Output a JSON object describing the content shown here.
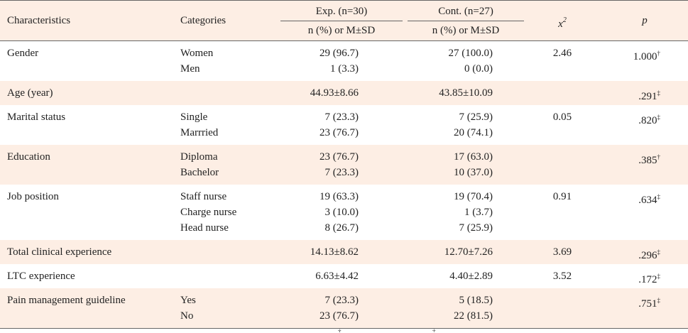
{
  "header": {
    "characteristics": "Characteristics",
    "categories": "Categories",
    "exp_group": "Exp. (n=30)",
    "cont_group": "Cont. (n=27)",
    "exp_sub": "n (%) or M±SD",
    "cont_sub": "n (%) or M±SD",
    "chi_base": "x",
    "chi_exp": "2",
    "p": "p"
  },
  "rows": [
    {
      "char": "Gender",
      "cats": [
        "Women",
        "Men"
      ],
      "exp": [
        "29 (96.7)",
        "1 (3.3)"
      ],
      "cont": [
        "27 (100.0)",
        "0 (0.0)"
      ],
      "chi": "2.46",
      "p": "1.000",
      "mark": "†",
      "shade": false
    },
    {
      "char": "Age (year)",
      "cats": [
        ""
      ],
      "exp": [
        "44.93±8.66"
      ],
      "cont": [
        "43.85±10.09"
      ],
      "chi": "",
      "p": ".291",
      "mark": "‡",
      "shade": true
    },
    {
      "char": "Marital status",
      "cats": [
        "Single",
        "Marrried"
      ],
      "exp": [
        "7 (23.3)",
        "23 (76.7)"
      ],
      "cont": [
        "7 (25.9)",
        "20 (74.1)"
      ],
      "chi": "0.05",
      "p": ".820",
      "mark": "‡",
      "shade": false
    },
    {
      "char": "Education",
      "cats": [
        "Diploma",
        "Bachelor"
      ],
      "exp": [
        "23 (76.7)",
        "7 (23.3)"
      ],
      "cont": [
        "17 (63.0)",
        "10 (37.0)"
      ],
      "chi": "",
      "p": ".385",
      "mark": "†",
      "shade": true
    },
    {
      "char": "Job position",
      "cats": [
        "Staff nurse",
        "Charge nurse",
        "Head nurse"
      ],
      "exp": [
        "19 (63.3)",
        "3 (10.0)",
        "8 (26.7)"
      ],
      "cont": [
        "19 (70.4)",
        "1 (3.7)",
        "7 (25.9)"
      ],
      "chi": "0.91",
      "p": ".634",
      "mark": "‡",
      "shade": false
    },
    {
      "char": "Total clinical experience",
      "cats": [
        ""
      ],
      "exp": [
        "14.13±8.62"
      ],
      "cont": [
        "12.70±7.26"
      ],
      "chi": "3.69",
      "p": ".296",
      "mark": "‡",
      "shade": true
    },
    {
      "char": "LTC experience",
      "cats": [
        ""
      ],
      "exp": [
        "6.63±4.42"
      ],
      "cont": [
        "4.40±2.89"
      ],
      "chi": "3.52",
      "p": ".172",
      "mark": "‡",
      "shade": false
    },
    {
      "char": "Pain management guideline",
      "cats": [
        "Yes",
        "No"
      ],
      "exp": [
        "7 (23.3)",
        "23 (76.7)"
      ],
      "cont": [
        "5 (18.5)",
        "22 (81.5)"
      ],
      "chi": "",
      "p": ".751",
      "mark": "‡",
      "shade": true
    }
  ],
  "footnote_marks": [
    "†",
    "‡"
  ]
}
